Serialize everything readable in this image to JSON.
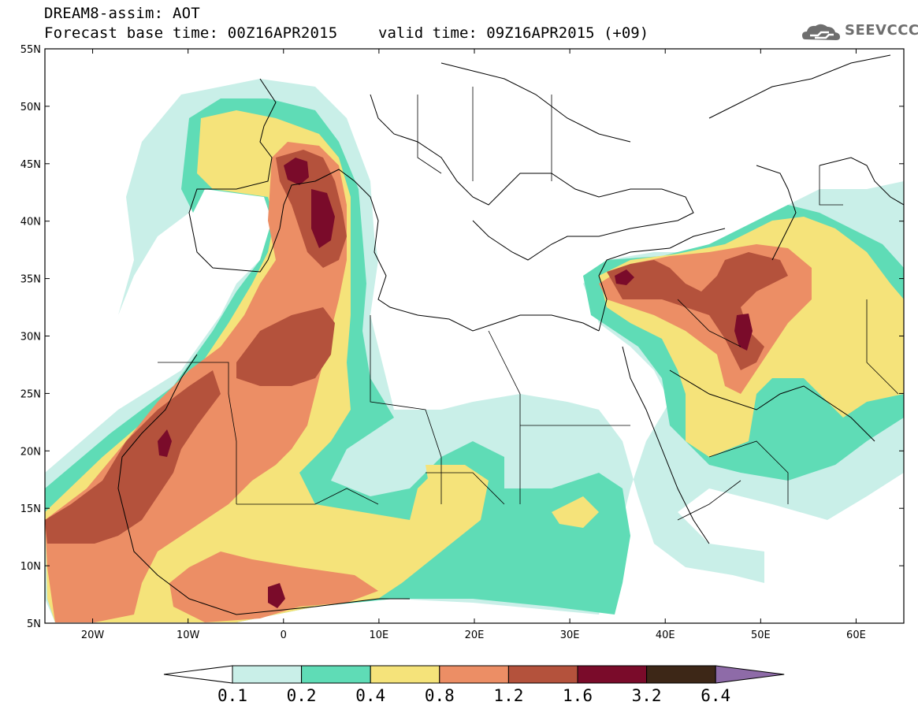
{
  "header": {
    "title_line1": "DREAM8-assim: AOT",
    "title_line2": "Forecast base time: 00Z16APR2015",
    "valid_time": "valid time: 09Z16APR2015 (+09)",
    "logo_text": "SEEVCCC",
    "logo_icon": "cloud-icon"
  },
  "map": {
    "lat_labels": [
      "55N",
      "50N",
      "45N",
      "40N",
      "35N",
      "30N",
      "25N",
      "20N",
      "15N",
      "10N",
      "5N"
    ],
    "lon_labels": [
      "20W",
      "10W",
      "0",
      "10E",
      "20E",
      "30E",
      "40E",
      "50E",
      "60E"
    ],
    "extent": {
      "lon_min": -25,
      "lon_max": 65,
      "lat_min": 5,
      "lat_max": 55
    }
  },
  "legend": {
    "labels": [
      "0.1",
      "0.2",
      "0.4",
      "0.8",
      "1.2",
      "1.6",
      "3.2",
      "6.4"
    ],
    "colors": [
      "#ffffff",
      "#c9efe8",
      "#5fdcb6",
      "#f5e37a",
      "#ec8e65",
      "#b4523c",
      "#7a0b2a",
      "#3d2717",
      "#8e6ba8"
    ]
  },
  "colors": {
    "c01": "#c9efe8",
    "c02": "#5fdcb6",
    "c04": "#f5e37a",
    "c08": "#ec8e65",
    "c12": "#b4523c",
    "c16": "#7a0b2a"
  }
}
